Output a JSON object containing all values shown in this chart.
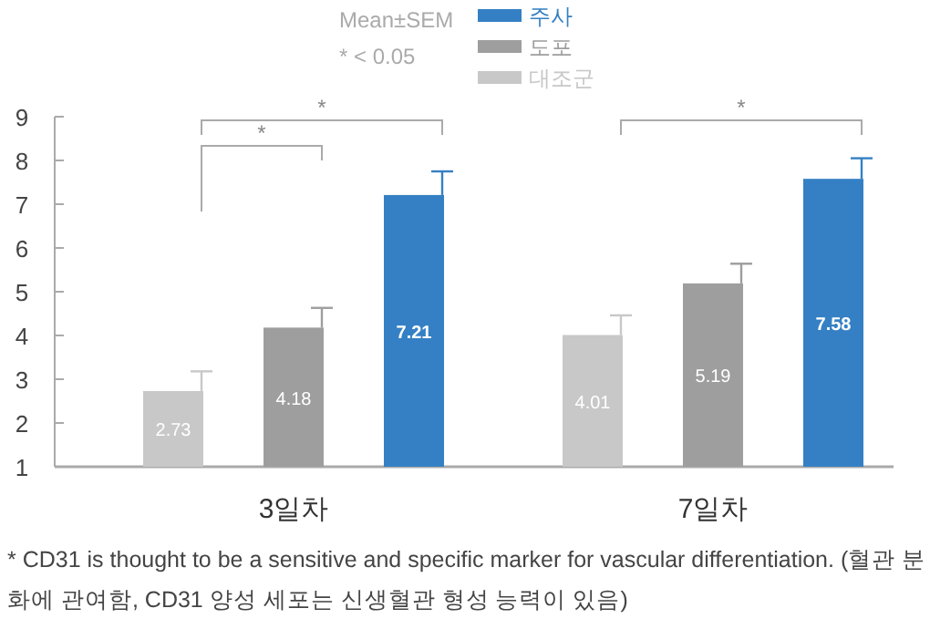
{
  "chart_data": {
    "type": "bar",
    "categories": [
      "3일차",
      "7일차"
    ],
    "series": [
      {
        "name": "대조군",
        "color": "#c8c8c8",
        "values": [
          2.73,
          4.01
        ],
        "errors": [
          [
            2.73,
            3.18
          ],
          [
            4.01,
            4.46
          ]
        ]
      },
      {
        "name": "도포",
        "color": "#9d9e9d",
        "values": [
          4.18,
          5.19
        ],
        "errors": [
          [
            4.18,
            4.63
          ],
          [
            5.19,
            5.64
          ]
        ]
      },
      {
        "name": "주사",
        "color": "#3580c4",
        "values": [
          7.21,
          7.58
        ],
        "errors": [
          [
            7.21,
            7.75
          ],
          [
            7.58,
            8.05
          ]
        ]
      }
    ],
    "ylim": [
      1,
      9
    ],
    "yticks": [
      1,
      2,
      3,
      4,
      5,
      6,
      7,
      8,
      9
    ],
    "grid": false,
    "data_labels": true,
    "legend": "top",
    "annotations": [
      "Mean±SEM",
      "* < 0.05",
      "*",
      "*",
      "*",
      "* CD31 is thought to be a sensitive and specific marker for vascular differentiation. (혈관 분화에 관여함, CD31 양성 세포는 신생혈관 형성 능력이 있음)"
    ]
  }
}
